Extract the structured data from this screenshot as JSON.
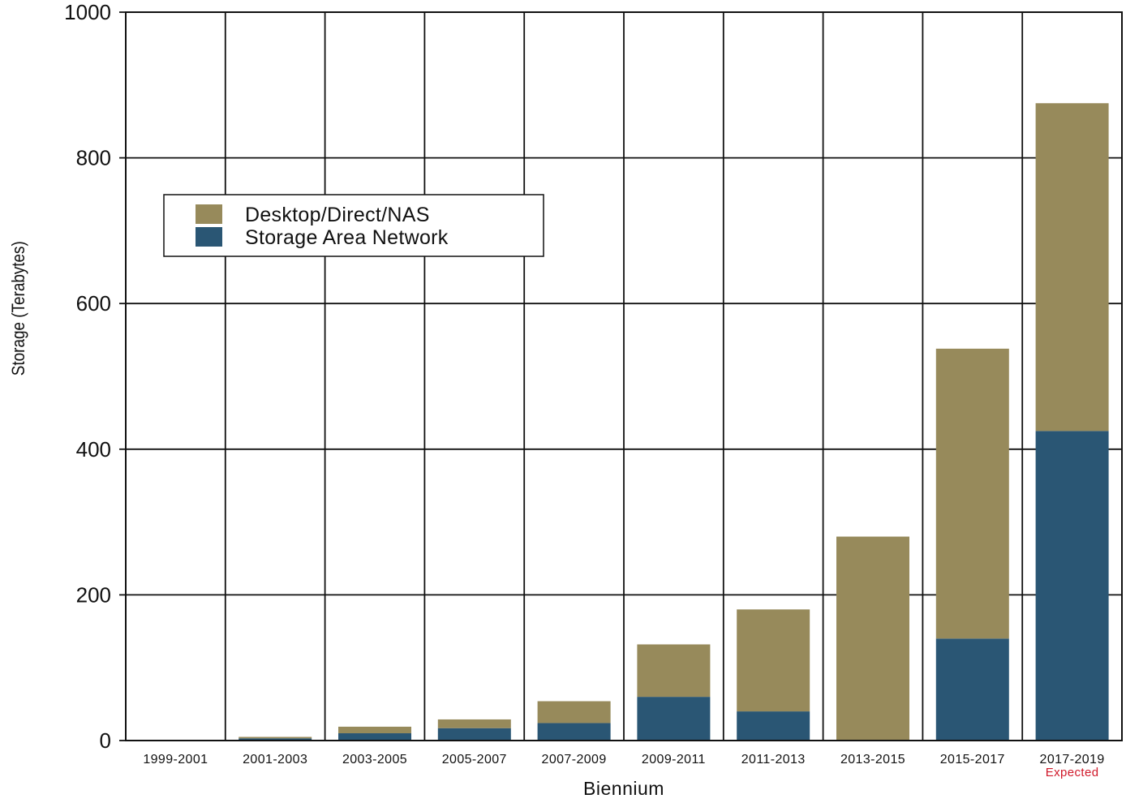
{
  "chart_data": {
    "type": "bar",
    "stacked": true,
    "xlabel": "Biennium",
    "ylabel": "Storage (Terabytes)",
    "ylim": [
      0,
      1000
    ],
    "yticks": [
      0,
      200,
      400,
      600,
      800,
      1000
    ],
    "categories": [
      "1999-2001",
      "2001-2003",
      "2003-2005",
      "2005-2007",
      "2007-2009",
      "2009-2011",
      "2011-2013",
      "2013-2015",
      "2015-2017",
      "2017-2019"
    ],
    "category_notes": [
      "",
      "",
      "",
      "",
      "",
      "",
      "",
      "",
      "",
      "Expected"
    ],
    "series": [
      {
        "name": "Storage Area Network",
        "color": "#2a5674",
        "values": [
          0,
          3,
          10,
          17,
          24,
          60,
          40,
          0,
          140,
          425
        ]
      },
      {
        "name": "Desktop/Direct/NAS",
        "color": "#978a5b",
        "values": [
          1,
          2,
          9,
          12,
          30,
          72,
          140,
          280,
          398,
          450
        ]
      }
    ],
    "legend": {
      "placement": "upper-left",
      "order": [
        "Desktop/Direct/NAS",
        "Storage Area Network"
      ]
    },
    "grid": true,
    "note_color": "#d0192a"
  }
}
